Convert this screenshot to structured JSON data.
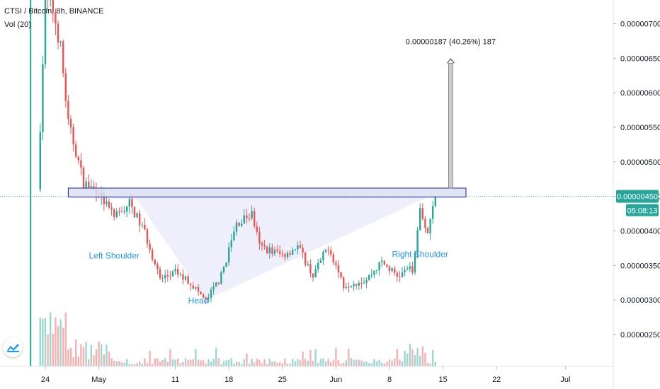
{
  "header": {
    "symbol_line": "CTSI / Bitcoin, 8h, BINANCE",
    "indicator_line": "Vol (20)"
  },
  "price_badge": {
    "value": "0.00000450",
    "countdown": "05:08:13",
    "color": "#26a69a"
  },
  "colors": {
    "up": "#26a69a",
    "down": "#ef5350",
    "zone_fill": "#dcdff0",
    "zone_stroke": "#1c1ca0",
    "pattern_fill": "#e8eafa",
    "label": "#2196f3"
  },
  "chart_data": {
    "type": "candlestick",
    "y_axis": {
      "ticks": [
        {
          "value": 700,
          "label": "0.00000700"
        },
        {
          "value": 650,
          "label": "0.00000650"
        },
        {
          "value": 600,
          "label": "0.00000600"
        },
        {
          "value": 550,
          "label": "0.00000550"
        },
        {
          "value": 500,
          "label": "0.00000500"
        },
        {
          "value": 450,
          "label": "0.00000450"
        },
        {
          "value": 400,
          "label": "0.00000400"
        },
        {
          "value": 350,
          "label": "0.00000350"
        },
        {
          "value": 300,
          "label": "0.00000300"
        },
        {
          "value": 250,
          "label": "0.00000250"
        }
      ],
      "unit": "satoshi"
    },
    "x_axis": {
      "ticks": [
        {
          "date": "2020-04-24",
          "label": "24"
        },
        {
          "date": "2020-05-01",
          "label": "May"
        },
        {
          "date": "2020-05-11",
          "label": "11"
        },
        {
          "date": "2020-05-18",
          "label": "18"
        },
        {
          "date": "2020-05-25",
          "label": "25"
        },
        {
          "date": "2020-06-01",
          "label": "Jun"
        },
        {
          "date": "2020-06-08",
          "label": "8"
        },
        {
          "date": "2020-06-15",
          "label": "15"
        },
        {
          "date": "2020-06-22",
          "label": "22"
        },
        {
          "date": "2020-07-01",
          "label": "Jul"
        }
      ]
    },
    "last_price": 450,
    "neckline_zone": {
      "from": 449,
      "to": 462,
      "start": "2020-04-27",
      "end": "2020-06-18"
    },
    "target_arrow": {
      "date": "2020-06-16",
      "from": 462,
      "to": 649,
      "label": "0.00000187 (40.26%) 187"
    },
    "annotations": [
      {
        "text": "Left Shoulder",
        "date": "2020-05-03",
        "price": 360
      },
      {
        "text": "Head",
        "date": "2020-05-14",
        "price": 295
      },
      {
        "text": "Right Shoulder",
        "date": "2020-06-12",
        "price": 362
      }
    ],
    "pattern_points": [
      {
        "date": "2020-04-29",
        "price": 450
      },
      {
        "date": "2020-05-06",
        "price": 445
      },
      {
        "date": "2020-05-15",
        "price": 300
      },
      {
        "date": "2020-06-13",
        "price": 449
      }
    ],
    "price_keys": [
      {
        "date": "2020-04-23",
        "price": 460
      },
      {
        "date": "2020-04-24",
        "price": 738
      },
      {
        "date": "2020-04-25",
        "price": 720
      },
      {
        "date": "2020-04-26",
        "price": 665
      },
      {
        "date": "2020-04-27",
        "price": 555
      },
      {
        "date": "2020-04-28",
        "price": 515
      },
      {
        "date": "2020-04-29",
        "price": 470
      },
      {
        "date": "2020-05-01",
        "price": 455
      },
      {
        "date": "2020-05-03",
        "price": 418
      },
      {
        "date": "2020-05-05",
        "price": 440
      },
      {
        "date": "2020-05-07",
        "price": 398
      },
      {
        "date": "2020-05-09",
        "price": 330
      },
      {
        "date": "2020-05-11",
        "price": 340
      },
      {
        "date": "2020-05-13",
        "price": 325
      },
      {
        "date": "2020-05-15",
        "price": 298
      },
      {
        "date": "2020-05-17",
        "price": 335
      },
      {
        "date": "2020-05-19",
        "price": 410
      },
      {
        "date": "2020-05-21",
        "price": 425
      },
      {
        "date": "2020-05-22",
        "price": 378
      },
      {
        "date": "2020-05-25",
        "price": 365
      },
      {
        "date": "2020-05-27",
        "price": 378
      },
      {
        "date": "2020-05-29",
        "price": 335
      },
      {
        "date": "2020-05-31",
        "price": 378
      },
      {
        "date": "2020-06-02",
        "price": 322
      },
      {
        "date": "2020-06-05",
        "price": 330
      },
      {
        "date": "2020-06-07",
        "price": 355
      },
      {
        "date": "2020-06-09",
        "price": 335
      },
      {
        "date": "2020-06-11",
        "price": 345
      },
      {
        "date": "2020-06-12",
        "price": 432
      },
      {
        "date": "2020-06-13",
        "price": 398
      },
      {
        "date": "2020-06-14",
        "price": 450
      }
    ]
  }
}
